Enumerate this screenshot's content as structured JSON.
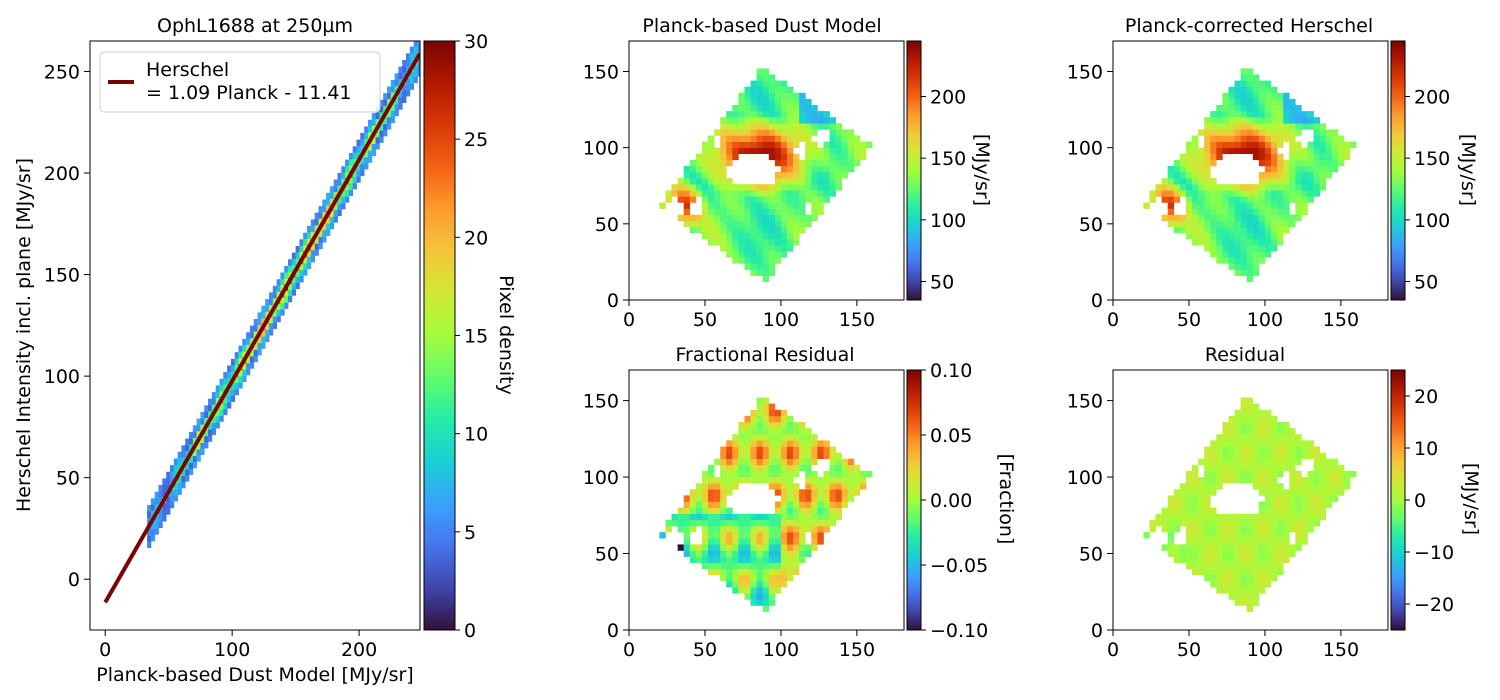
{
  "colormap": [
    "#30123b",
    "#4145ab",
    "#4675ed",
    "#39a2fc",
    "#1bcfd4",
    "#24eca6",
    "#61fc6c",
    "#a4fc3b",
    "#d1e834",
    "#f3c63a",
    "#fe9b2d",
    "#f36315",
    "#d93806",
    "#b11901",
    "#7a0402"
  ],
  "chart_data": [
    {
      "panel": "density",
      "type": "heatmap",
      "title": "OphL1688 at 250µm",
      "xlabel": "Planck-based Dust Model [MJy/sr]",
      "ylabel": "Herschel Intensity incl. plane [MJy/sr]",
      "xlim": [
        -12,
        248
      ],
      "ylim": [
        -25,
        265
      ],
      "xticks": [
        0,
        100,
        200
      ],
      "yticks": [
        0,
        50,
        100,
        150,
        200,
        250
      ],
      "fit": {
        "slope": 1.09,
        "intercept": -11.41,
        "x_range": [
          0,
          248
        ],
        "color": "#7a0402"
      },
      "legend": {
        "position": "upper-left",
        "lines": [
          "Herschel",
          "= 1.09 Planck - 11.41"
        ]
      },
      "points_x_range": [
        33,
        248
      ],
      "colorbar": {
        "label": "Pixel density",
        "range": [
          0,
          30
        ],
        "ticks": [
          0,
          5,
          10,
          15,
          20,
          25,
          30
        ]
      }
    },
    {
      "panel": "model",
      "type": "heatmap",
      "title": "Planck-based Dust Model",
      "xlim": [
        0,
        181
      ],
      "ylim": [
        0,
        170
      ],
      "xticks": [
        0,
        50,
        100,
        150
      ],
      "yticks": [
        0,
        50,
        100,
        150
      ],
      "colorbar": {
        "label": "[MJy/sr]",
        "range": [
          35,
          245
        ],
        "ticks": [
          50,
          100,
          150,
          200
        ],
        "tick_labels": [
          "50",
          "100",
          "150",
          "200"
        ]
      }
    },
    {
      "panel": "corrected",
      "type": "heatmap",
      "title": "Planck-corrected Herschel",
      "xlim": [
        0,
        181
      ],
      "ylim": [
        0,
        170
      ],
      "xticks": [
        0,
        50,
        100,
        150
      ],
      "yticks": [
        0,
        50,
        100,
        150
      ],
      "colorbar": {
        "label": "[MJy/sr]",
        "range": [
          35,
          245
        ],
        "ticks": [
          50,
          100,
          150,
          200
        ],
        "tick_labels": [
          "50",
          "100",
          "150",
          "200"
        ]
      }
    },
    {
      "panel": "fractional",
      "type": "heatmap",
      "title": "Fractional Residual",
      "xlim": [
        0,
        181
      ],
      "ylim": [
        0,
        170
      ],
      "xticks": [
        0,
        50,
        100,
        150
      ],
      "yticks": [
        0,
        50,
        100,
        150
      ],
      "colorbar": {
        "label": "[Fraction]",
        "range": [
          -0.1,
          0.1
        ],
        "ticks": [
          -0.1,
          -0.05,
          0,
          0.05,
          0.1
        ],
        "tick_labels": [
          "−0.10",
          "−0.05",
          "0.00",
          "0.05",
          "0.10"
        ]
      }
    },
    {
      "panel": "residual",
      "type": "heatmap",
      "title": "Residual",
      "xlim": [
        0,
        181
      ],
      "ylim": [
        0,
        170
      ],
      "xticks": [
        0,
        50,
        100,
        150
      ],
      "yticks": [
        0,
        50,
        100,
        150
      ],
      "colorbar": {
        "label": "[MJy/sr]",
        "range": [
          -25,
          25
        ],
        "ticks": [
          -20,
          -10,
          0,
          10,
          20
        ],
        "tick_labels": [
          "−20",
          "−10",
          "0",
          "10",
          "20"
        ]
      }
    }
  ],
  "map_footprint": [
    [
      19,
      61
    ],
    [
      88,
      153
    ],
    [
      160,
      101
    ],
    [
      90,
      12
    ]
  ],
  "map_holes": [
    [
      [
        64,
        85
      ],
      [
        74,
        96
      ],
      [
        90,
        96
      ],
      [
        100,
        88
      ],
      [
        96,
        78
      ],
      [
        84,
        76
      ],
      [
        70,
        76
      ]
    ],
    [
      [
        20,
        58
      ],
      [
        32,
        68
      ],
      [
        36,
        60
      ],
      [
        28,
        48
      ]
    ],
    [
      [
        40,
        60
      ],
      [
        46,
        70
      ],
      [
        50,
        64
      ],
      [
        44,
        54
      ]
    ],
    [
      [
        122,
        106
      ],
      [
        128,
        116
      ],
      [
        132,
        108
      ],
      [
        126,
        100
      ]
    ],
    [
      [
        110,
        98
      ],
      [
        114,
        104
      ],
      [
        118,
        96
      ],
      [
        114,
        90
      ]
    ],
    [
      [
        54,
        104
      ],
      [
        58,
        108
      ],
      [
        60,
        102
      ],
      [
        56,
        100
      ]
    ],
    [
      [
        114,
        56
      ],
      [
        117,
        66
      ],
      [
        120,
        60
      ],
      [
        117,
        52
      ]
    ]
  ]
}
